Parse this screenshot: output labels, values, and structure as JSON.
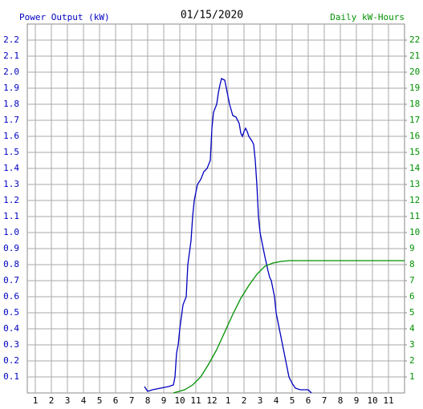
{
  "chart_data": {
    "type": "line",
    "title": "01/15/2020",
    "y_label": "Power Output (kW)",
    "y2_label": "Daily kW-Hours",
    "xlim": [
      0.5,
      24
    ],
    "xticks": [
      1,
      2,
      3,
      4,
      5,
      6,
      7,
      8,
      9,
      10,
      11,
      12,
      {
        "value": 13,
        "label": "1"
      },
      {
        "value": 14,
        "label": "2"
      },
      {
        "value": 15,
        "label": "3"
      },
      {
        "value": 16,
        "label": "4"
      },
      {
        "value": 17,
        "label": "5"
      },
      {
        "value": 18,
        "label": "6"
      },
      {
        "value": 19,
        "label": "7"
      },
      {
        "value": 20,
        "label": "8"
      },
      {
        "value": 21,
        "label": "9"
      },
      {
        "value": 22,
        "label": "10"
      },
      {
        "value": 23,
        "label": "11"
      }
    ],
    "ylim": [
      0,
      2.3
    ],
    "yticks": [
      0.1,
      0.2,
      0.3,
      0.4,
      0.5,
      0.6,
      0.7,
      0.8,
      0.9,
      {
        "value": 1,
        "label": "1.0"
      },
      1.1,
      1.2,
      1.3,
      1.4,
      1.5,
      1.6,
      1.7,
      1.8,
      1.9,
      {
        "value": 2,
        "label": "2.0"
      },
      2.1,
      2.2
    ],
    "y2lim": [
      0,
      23
    ],
    "y2ticks": [
      1,
      2,
      3,
      4,
      5,
      6,
      7,
      8,
      9,
      10,
      11,
      12,
      13,
      14,
      15,
      16,
      17,
      18,
      19,
      20,
      21,
      22
    ],
    "grid": true,
    "series": [
      {
        "name": "Power Output (kW)",
        "color": "#0000c0",
        "x": [
          7.8,
          8,
          8.3,
          8.8,
          9.3,
          9.6,
          9.7,
          9.8,
          9.9,
          10,
          10.2,
          10.4,
          10.5,
          10.7,
          10.8,
          10.9,
          11,
          11.1,
          11.3,
          11.5,
          11.7,
          11.9,
          12,
          12.1,
          12.3,
          12.4,
          12.5,
          12.6,
          12.8,
          12.9,
          13.1,
          13.3,
          13.5,
          13.7,
          13.8,
          13.9,
          14,
          14.1,
          14.2,
          14.3,
          14.5,
          14.6,
          14.7,
          14.8,
          14.9,
          15,
          15.1,
          15.2,
          15.3,
          15.5,
          15.6,
          15.7,
          15.8,
          15.9,
          16,
          16.1,
          16.2,
          16.3,
          16.4,
          16.6,
          16.8,
          17,
          17.2,
          17.5,
          18,
          18.2
        ],
        "values": [
          0.04,
          0.01,
          0.02,
          0.03,
          0.04,
          0.05,
          0.1,
          0.25,
          0.3,
          0.4,
          0.55,
          0.6,
          0.8,
          0.95,
          1.1,
          1.2,
          1.25,
          1.3,
          1.33,
          1.38,
          1.4,
          1.45,
          1.65,
          1.75,
          1.8,
          1.87,
          1.92,
          1.96,
          1.95,
          1.9,
          1.8,
          1.73,
          1.72,
          1.68,
          1.62,
          1.6,
          1.63,
          1.65,
          1.63,
          1.6,
          1.57,
          1.55,
          1.45,
          1.3,
          1.1,
          1.0,
          0.95,
          0.9,
          0.85,
          0.76,
          0.72,
          0.7,
          0.65,
          0.6,
          0.5,
          0.45,
          0.4,
          0.35,
          0.3,
          0.2,
          0.1,
          0.06,
          0.03,
          0.02,
          0.02,
          0
        ]
      },
      {
        "name": "Daily kW-Hours",
        "color": "#009000",
        "axis": "y2",
        "x": [
          9.6,
          10.3,
          10.8,
          11.3,
          11.8,
          12.3,
          12.8,
          13.3,
          13.8,
          14.3,
          14.8,
          15.3,
          15.8,
          16.3,
          16.8,
          24
        ],
        "values": [
          0,
          0.2,
          0.5,
          1.0,
          1.8,
          2.7,
          3.8,
          4.9,
          5.9,
          6.7,
          7.4,
          7.9,
          8.1,
          8.2,
          8.25,
          8.25
        ]
      }
    ]
  }
}
